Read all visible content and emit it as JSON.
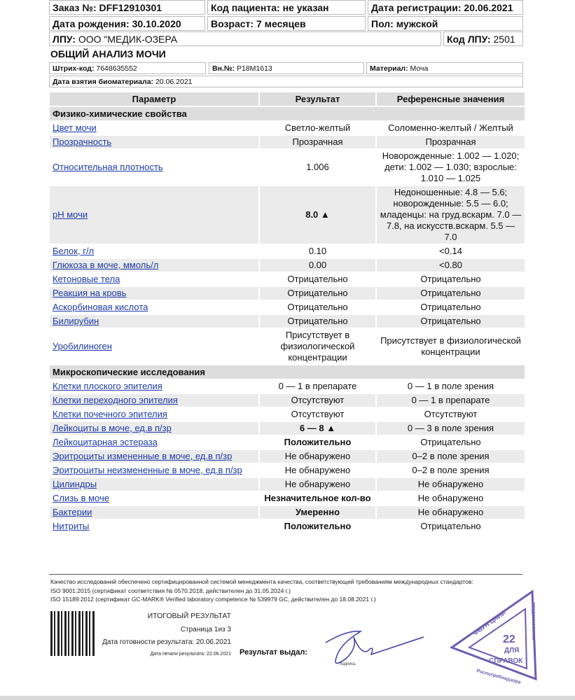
{
  "header": {
    "order": {
      "label": "Заказ №:",
      "value": "DFF12910301"
    },
    "patient_code": {
      "label": "Код пациента:",
      "value": "не указан"
    },
    "reg_date": {
      "label": "Дата регистрации:",
      "value": "20.06.2021"
    },
    "birth": {
      "label": "Дата рождения:",
      "value": "30.10.2020"
    },
    "age": {
      "label": "Возраст:",
      "value": "7 месяцев"
    },
    "sex": {
      "label": "Пол:",
      "value": "мужской"
    },
    "lpu": {
      "label": "ЛПУ:",
      "value": "ООО \"МЕДИК-ОЗЕРА"
    },
    "lpu_code": {
      "label": "Код ЛПУ:",
      "value": "2501"
    }
  },
  "title": "ОБЩИЙ АНАЛИЗ МОЧИ",
  "meta": {
    "barcode": {
      "label": "Штрих-код:",
      "value": "7648635552"
    },
    "inner": {
      "label": "Вн.№:",
      "value": "P18M1613"
    },
    "material": {
      "label": "Материал:",
      "value": "Моча"
    },
    "sample_date": {
      "label": "Дата взятия биоматериала:",
      "value": "20.06.2021"
    }
  },
  "table": {
    "columns": [
      "Параметр",
      "Результат",
      "Референсные значения"
    ],
    "sections": [
      {
        "name": "Физико-химические свойства",
        "rows": [
          {
            "param": "Цвет мочи",
            "result": "Светло-желтый",
            "ref": "Соломенно-желтый / Желтый"
          },
          {
            "param": "Прозрачность",
            "result": "Прозрачная",
            "ref": "Прозрачная"
          },
          {
            "param": "Относительная плотность",
            "result": "1.006",
            "ref": "Новорожденные: 1.002 — 1.020; дети: 1.002 — 1.030; взрослые: 1.010 — 1.025"
          },
          {
            "param": "pH мочи",
            "result": "8.0 ▲",
            "bold": true,
            "ref": "Недоношенные: 4.8 — 5.6; новорожденные: 5.5 — 6.0; младенцы: на груд.вскарм. 7.0 — 7.8, на искусств.вскарм. 5.5 — 7.0"
          },
          {
            "param": "Белок, г/л",
            "result": "0.10",
            "ref": "<0.14"
          },
          {
            "param": "Глюкоза в моче, ммоль/л",
            "result": "0.00",
            "ref": "<0.80"
          },
          {
            "param": "Кетоновые тела",
            "result": "Отрицательно",
            "ref": "Отрицательно"
          },
          {
            "param": "Реакция на кровь",
            "result": "Отрицательно",
            "ref": "Отрицательно"
          },
          {
            "param": "Аскорбиновая кислота",
            "result": "Отрицательно",
            "ref": "Отрицательно"
          },
          {
            "param": "Билирубин",
            "result": "Отрицательно",
            "ref": "Отрицательно"
          },
          {
            "param": "Уробилиноген",
            "result": "Присутствует в физиологической концентрации",
            "ref": "Присутствует в физиологической концентрации"
          }
        ]
      },
      {
        "name": "Микроскопические исследования",
        "rows": [
          {
            "param": "Клетки плоского эпителия",
            "result": "0 — 1 в препарате",
            "ref": "0 — 1 в поле зрения"
          },
          {
            "param": "Клетки переходного эпителия",
            "result": "Отсутствуют",
            "ref": "0 — 1 в препарате"
          },
          {
            "param": "Клетки почечного эпителия",
            "result": "Отсутствуют",
            "ref": "Отсутствуют"
          },
          {
            "param": "Лейкоциты в моче, ед.в п/зр",
            "result": "6 — 8 ▲",
            "bold": true,
            "ref": "0 — 3 в поле зрения"
          },
          {
            "param": "Лейкоцитарная эстераза",
            "result": "Положительно",
            "bold": true,
            "ref": "Отрицательно"
          },
          {
            "param": "Эритроциты измененные в моче, ед.в п/зр",
            "result": "Не обнаружено",
            "ref": "0–2 в поле зрения"
          },
          {
            "param": "Эритроциты неизмененные в моче, ед.в п/зр",
            "result": "Не обнаружено",
            "ref": "0–2 в поле зрения"
          },
          {
            "param": "Цилиндры",
            "result": "Не обнаружено",
            "ref": "Не обнаружено"
          },
          {
            "param": "Слизь в моче",
            "result": "Незначительное кол-во",
            "bold": true,
            "ref": "Не обнаружено"
          },
          {
            "param": "Бактерии",
            "result": "Умеренно",
            "bold": true,
            "ref": "Не обнаружено"
          },
          {
            "param": "Нитриты",
            "result": "Положительно",
            "bold": true,
            "ref": "Отрицательно"
          }
        ]
      }
    ]
  },
  "footer": {
    "quality": [
      "Качество исследований обеспечено сертифицированной системой менеджмента качества, соответствующей требованиям международных стандартов:",
      "ISO 9001:2015 (сертификат соответствия № 0570.2018, действителен до 31.05.2024 г.)",
      "ISO 15189:2012 (сертификат GC-MARK® Verified laboratory competence № 539979 GC, действителен до 18.08.2021 г.)"
    ],
    "final": "ИТОГОВЫЙ РЕЗУЛЬТАТ",
    "page": "Страница 1из 3",
    "ready": "Дата готовности результата: 20.06.2021",
    "printed": "Дата печати результата: 22.06.2021",
    "issued": "Результат выдал:",
    "signature_caption": "подпись",
    "stamp": [
      "ФБУН ЦНИИ",
      "эпидемиологии",
      "22",
      "ДЛЯ",
      "СПРАВОК",
      "Роспотребнадзора"
    ]
  },
  "colors": {
    "link": "#1c3aa9",
    "row_alt": "#ebebeb",
    "header_bg": "#dddddd",
    "stamp": "#6a5fb0"
  }
}
